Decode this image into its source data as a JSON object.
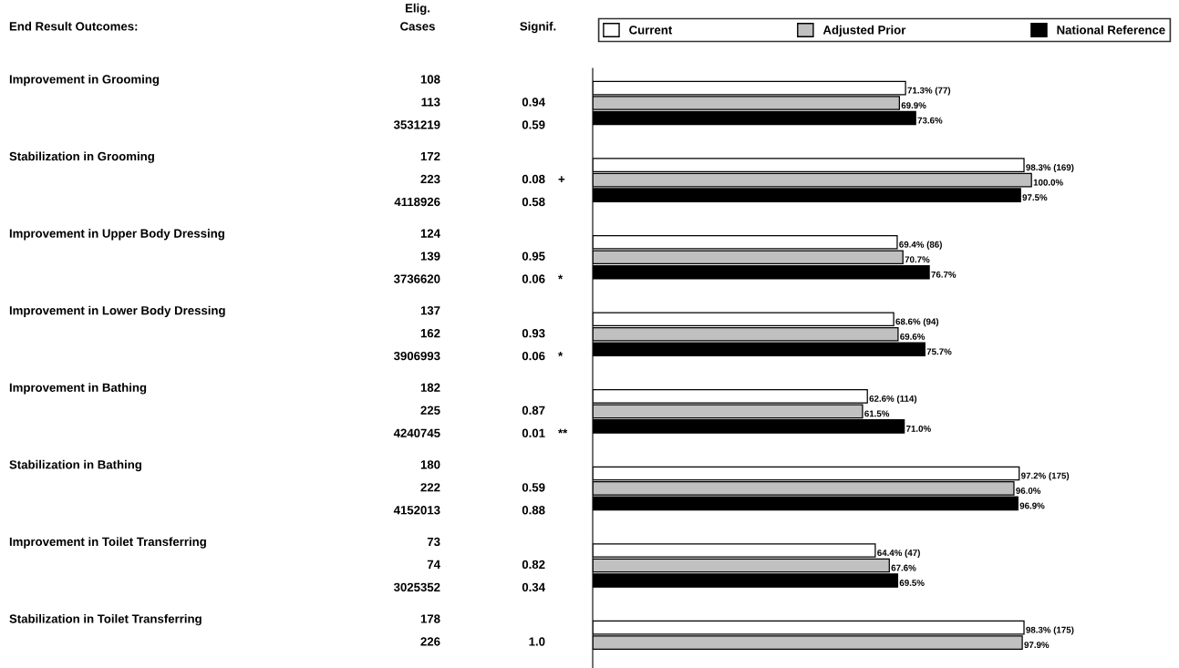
{
  "chart_data": {
    "type": "bar",
    "orientation": "horizontal",
    "legend": "top",
    "categories": [
      "Improvement in Grooming",
      "Stabilization in Grooming",
      "Improvement in Upper Body Dressing",
      "Improvement in Lower Body Dressing",
      "Improvement in Bathing",
      "Stabilization in Bathing",
      "Improvement in Toilet Transferring",
      "Stabilization in Toilet Transferring"
    ],
    "series": [
      {
        "name": "Current",
        "color": "#ffffff",
        "values": [
          71.3,
          98.3,
          69.4,
          68.6,
          62.6,
          97.2,
          64.4,
          98.3
        ],
        "value_labels": [
          "71.3% (77)",
          "98.3% (169)",
          "69.4% (86)",
          "68.6% (94)",
          "62.6% (114)",
          "97.2% (175)",
          "64.4% (47)",
          "98.3% (175)"
        ]
      },
      {
        "name": "Adjusted Prior",
        "color": "#c0c0c0",
        "values": [
          69.9,
          100.0,
          70.7,
          69.6,
          61.5,
          96.0,
          67.6,
          97.9
        ],
        "value_labels": [
          "69.9%",
          "100.0%",
          "70.7%",
          "69.6%",
          "61.5%",
          "96.0%",
          "67.6%",
          "97.9%"
        ]
      },
      {
        "name": "National Reference",
        "color": "#000000",
        "values": [
          73.6,
          97.5,
          76.7,
          75.7,
          71.0,
          96.9,
          69.5,
          null
        ],
        "value_labels": [
          "73.6%",
          "97.5%",
          "76.7%",
          "75.7%",
          "71.0%",
          "96.9%",
          "69.5%",
          null
        ]
      }
    ],
    "annotations": [
      "End Result Outcomes:",
      "Elig.",
      "Cases",
      "Signif.",
      "108",
      null,
      null,
      "113",
      "0.94",
      null,
      "3531219",
      "0.59",
      null,
      "172",
      null,
      null,
      "223",
      "0.08",
      "+",
      "4118926",
      "0.58",
      null,
      "124",
      null,
      null,
      "139",
      "0.95",
      null,
      "3736620",
      "0.06",
      "*",
      "137",
      null,
      null,
      "162",
      "0.93",
      null,
      "3906993",
      "0.06",
      "*",
      "182",
      null,
      null,
      "225",
      "0.87",
      null,
      "4240745",
      "0.01",
      "**",
      "180",
      null,
      null,
      "222",
      "0.59",
      null,
      "4152013",
      "0.88",
      null,
      "73",
      null,
      null,
      "74",
      "0.82",
      null,
      "3025352",
      "0.34",
      null,
      "178",
      null,
      null,
      "226",
      "1.0",
      null,
      null,
      null,
      null
    ]
  }
}
